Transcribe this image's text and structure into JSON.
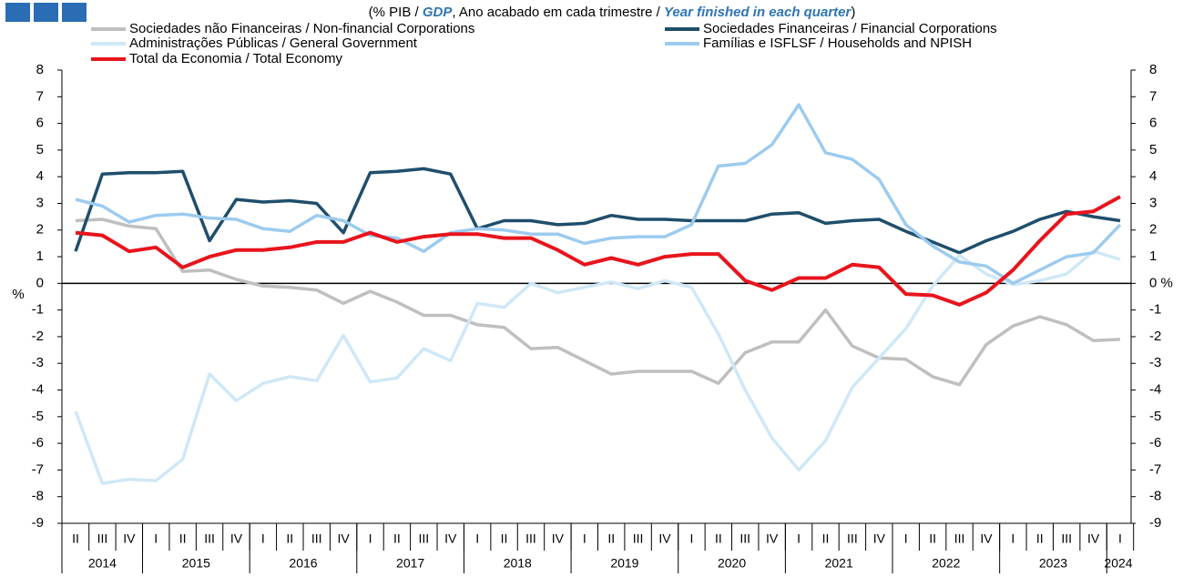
{
  "chart_data": {
    "type": "line",
    "title_parts": [
      "(% PIB / ",
      "GDP",
      ", Ano acabado em cada trimestre / ",
      "Year finished in each quarter",
      ")"
    ],
    "ylabel": "%",
    "categories": [
      "II",
      "III",
      "IV",
      "I",
      "II",
      "III",
      "IV",
      "I",
      "II",
      "III",
      "IV",
      "I",
      "II",
      "III",
      "IV",
      "I",
      "II",
      "III",
      "IV",
      "I",
      "II",
      "III",
      "IV",
      "I",
      "II",
      "III",
      "IV",
      "I",
      "II",
      "III",
      "IV",
      "I",
      "II",
      "III",
      "IV",
      "I",
      "II",
      "III",
      "IV",
      "I"
    ],
    "years": [
      "2014",
      "2015",
      "2016",
      "2017",
      "2018",
      "2019",
      "2020",
      "2021",
      "2022",
      "2023",
      "2024"
    ],
    "ylim": [
      -9,
      8
    ],
    "yticks": [
      -9,
      -8,
      -7,
      -6,
      -5,
      -4,
      -3,
      -2,
      -1,
      0,
      1,
      2,
      3,
      4,
      5,
      6,
      7,
      8
    ],
    "y2lim": [
      -9,
      8
    ],
    "y2ticks": [
      -9,
      -8,
      -7,
      -6,
      -5,
      -4,
      -3,
      -2,
      -1,
      {
        "value": 0,
        "label": "0 %"
      },
      1,
      2,
      3,
      4,
      5,
      6,
      7,
      8
    ],
    "series": [
      {
        "name": "Sociedades não Financeiras / Non-financial Corporations",
        "color": "#bfbfbf",
        "values": [
          2.35,
          2.4,
          2.15,
          2.05,
          0.45,
          0.5,
          0.15,
          -0.1,
          -0.15,
          -0.25,
          -0.75,
          -0.3,
          -0.7,
          -1.2,
          -1.2,
          -1.55,
          -1.65,
          -2.45,
          -2.4,
          -2.9,
          -3.4,
          -3.3,
          -3.3,
          -3.3,
          -3.75,
          -2.6,
          -2.2,
          -2.2,
          -1.0,
          -2.35,
          -2.8,
          -2.85,
          -3.5,
          -3.8,
          -2.3,
          -1.6,
          -1.25,
          -1.55,
          -2.15,
          -2.1
        ]
      },
      {
        "name": "Sociedades Financeiras / Financial Corporations",
        "color": "#1f4e6b",
        "values": [
          1.2,
          4.1,
          4.15,
          4.15,
          4.2,
          1.6,
          3.15,
          3.05,
          3.1,
          3.0,
          1.9,
          4.15,
          4.2,
          4.3,
          4.1,
          2.05,
          2.35,
          2.35,
          2.2,
          2.25,
          2.55,
          2.4,
          2.4,
          2.35,
          2.35,
          2.35,
          2.6,
          2.65,
          2.25,
          2.35,
          2.4,
          1.95,
          1.55,
          1.15,
          1.6,
          1.95,
          2.4,
          2.7,
          2.5,
          2.35
        ]
      },
      {
        "name": "Administrações Públicas / General Government",
        "color": "#cfe8f7",
        "values": [
          -4.8,
          -7.5,
          -7.35,
          -7.4,
          -6.6,
          -3.4,
          -4.4,
          -3.75,
          -3.5,
          -3.65,
          -1.95,
          -3.7,
          -3.55,
          -2.45,
          -2.9,
          -0.75,
          -0.9,
          0.0,
          -0.35,
          -0.15,
          0.05,
          -0.2,
          0.1,
          -0.15,
          -1.9,
          -4.0,
          -5.8,
          -7.0,
          -5.9,
          -3.9,
          -2.8,
          -1.7,
          -0.1,
          1.05,
          0.35,
          -0.05,
          0.1,
          0.35,
          1.2,
          0.9
        ]
      },
      {
        "name": "Famílias e ISFLSF / Households and NPISH",
        "color": "#9ccbef",
        "values": [
          3.15,
          2.9,
          2.3,
          2.55,
          2.6,
          2.45,
          2.4,
          2.05,
          1.95,
          2.55,
          2.35,
          1.8,
          1.7,
          1.2,
          1.9,
          2.05,
          2.0,
          1.85,
          1.85,
          1.5,
          1.7,
          1.75,
          1.75,
          2.2,
          4.4,
          4.5,
          5.2,
          6.7,
          4.9,
          4.65,
          3.9,
          2.2,
          1.4,
          0.8,
          0.65,
          0.0,
          0.5,
          1.0,
          1.15,
          2.2
        ]
      },
      {
        "name": "Total da Economia / Total Economy",
        "color": "#e8141c",
        "values": [
          1.9,
          1.8,
          1.2,
          1.35,
          0.6,
          1.0,
          1.25,
          1.25,
          1.35,
          1.55,
          1.55,
          1.9,
          1.55,
          1.75,
          1.85,
          1.85,
          1.7,
          1.7,
          1.25,
          0.7,
          0.95,
          0.7,
          1.0,
          1.1,
          1.1,
          0.1,
          -0.25,
          0.2,
          0.2,
          0.7,
          0.6,
          -0.4,
          -0.45,
          -0.8,
          -0.35,
          0.5,
          1.6,
          2.6,
          2.7,
          3.25
        ]
      }
    ]
  }
}
